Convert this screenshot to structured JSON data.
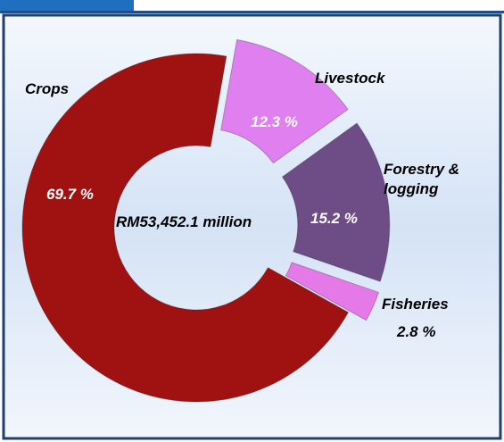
{
  "chart_data": {
    "type": "donut",
    "categories": [
      "Crops",
      "Livestock",
      "Forestry & logging",
      "Fisheries"
    ],
    "values": [
      69.7,
      12.3,
      15.2,
      2.8
    ],
    "value_labels": [
      "69.7 %",
      "12.3 %",
      "15.2 %",
      "2.8 %"
    ],
    "colors": [
      "#a01212",
      "#df7ff0",
      "#6e4c86",
      "#e679e8"
    ],
    "center_label": "RM53,452.1 million"
  }
}
